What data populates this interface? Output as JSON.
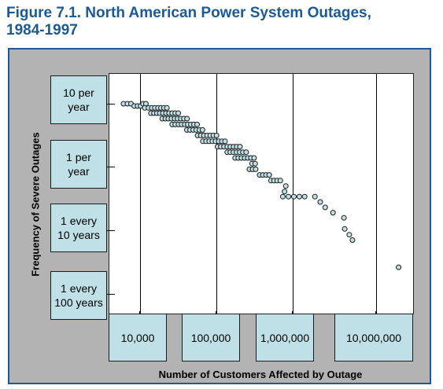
{
  "title_line1": "Figure 7.1. North American Power System Outages,",
  "title_line2": "1984-1997",
  "colors": {
    "title": "#1a5a96",
    "box_fill": "#bfe0e6",
    "frame": "#b3b3b3",
    "point_fill": "#bfe0e6"
  },
  "chart_data": {
    "type": "scatter",
    "xlabel": "Number of Customers Affected by Outage",
    "ylabel": "Frequency of Severe Outages",
    "xscale": "log",
    "yscale": "log",
    "x_ticks": [
      "10,000",
      "100,000",
      "1,000,000",
      "10,000,000"
    ],
    "y_ticks": [
      "10 per year",
      "1 per year",
      "1 every 10 years",
      "1 every 100 years"
    ],
    "xlim": [
      3400,
      38000000
    ],
    "ylim": [
      0.0033,
      25
    ],
    "grid_x": true,
    "grid_y": false,
    "points": [
      [
        6200,
        10
      ],
      [
        7000,
        10
      ],
      [
        7800,
        10
      ],
      [
        8600,
        9.2
      ],
      [
        9500,
        9.2
      ],
      [
        10400,
        9.2
      ],
      [
        11200,
        10
      ],
      [
        12200,
        10
      ],
      [
        11800,
        8.6
      ],
      [
        13200,
        8.6
      ],
      [
        14600,
        8.6
      ],
      [
        16000,
        8.6
      ],
      [
        17600,
        8.6
      ],
      [
        19200,
        8.6
      ],
      [
        21000,
        8.6
      ],
      [
        23000,
        8.6
      ],
      [
        14200,
        7.1
      ],
      [
        15600,
        7.1
      ],
      [
        17000,
        7.1
      ],
      [
        18600,
        7.1
      ],
      [
        20400,
        7.1
      ],
      [
        22400,
        7.1
      ],
      [
        24600,
        7.1
      ],
      [
        27000,
        7.1
      ],
      [
        29600,
        7.1
      ],
      [
        32400,
        7.1
      ],
      [
        20000,
        5.8
      ],
      [
        22000,
        5.8
      ],
      [
        24000,
        5.8
      ],
      [
        26400,
        5.8
      ],
      [
        29000,
        5.8
      ],
      [
        31800,
        5.8
      ],
      [
        35000,
        5.8
      ],
      [
        38400,
        5.8
      ],
      [
        42200,
        5.8
      ],
      [
        27000,
        4.7
      ],
      [
        29600,
        4.7
      ],
      [
        32600,
        4.7
      ],
      [
        35800,
        4.7
      ],
      [
        39400,
        4.7
      ],
      [
        43200,
        4.7
      ],
      [
        47400,
        4.7
      ],
      [
        52000,
        4.7
      ],
      [
        57200,
        4.7
      ],
      [
        42000,
        3.85
      ],
      [
        46200,
        3.85
      ],
      [
        50800,
        3.85
      ],
      [
        55800,
        3.85
      ],
      [
        61400,
        3.85
      ],
      [
        67400,
        3.85
      ],
      [
        58000,
        3.15
      ],
      [
        64000,
        3.15
      ],
      [
        70400,
        3.15
      ],
      [
        77400,
        3.15
      ],
      [
        85000,
        3.15
      ],
      [
        93500,
        3.15
      ],
      [
        103000,
        3.15
      ],
      [
        68000,
        2.55
      ],
      [
        75000,
        2.55
      ],
      [
        82500,
        2.55
      ],
      [
        90700,
        2.55
      ],
      [
        99800,
        2.55
      ],
      [
        110000,
        2.55
      ],
      [
        121000,
        2.55
      ],
      [
        133000,
        2.55
      ],
      [
        106000,
        2.1
      ],
      [
        117000,
        2.1
      ],
      [
        129000,
        2.1
      ],
      [
        142000,
        2.1
      ],
      [
        156000,
        2.1
      ],
      [
        172000,
        2.1
      ],
      [
        189000,
        2.1
      ],
      [
        208000,
        2.1
      ],
      [
        142000,
        1.71
      ],
      [
        156000,
        1.71
      ],
      [
        171000,
        1.71
      ],
      [
        188000,
        1.71
      ],
      [
        207000,
        1.71
      ],
      [
        228000,
        1.71
      ],
      [
        251000,
        1.71
      ],
      [
        180000,
        1.39
      ],
      [
        198000,
        1.39
      ],
      [
        218000,
        1.39
      ],
      [
        240000,
        1.39
      ],
      [
        264000,
        1.39
      ],
      [
        290000,
        1.39
      ],
      [
        319000,
        1.39
      ],
      [
        300000,
        1.13
      ],
      [
        330000,
        1.13
      ],
      [
        277000,
        0.92
      ],
      [
        305000,
        0.92
      ],
      [
        335000,
        0.92
      ],
      [
        378000,
        0.75
      ],
      [
        416000,
        0.75
      ],
      [
        458000,
        0.75
      ],
      [
        504000,
        0.75
      ],
      [
        530000,
        0.61
      ],
      [
        583000,
        0.61
      ],
      [
        641000,
        0.61
      ],
      [
        705000,
        0.61
      ],
      [
        830000,
        0.5
      ],
      [
        800000,
        0.41
      ],
      [
        760000,
        0.34
      ],
      [
        900000,
        0.34
      ],
      [
        1060000,
        0.34
      ],
      [
        1250000,
        0.34
      ],
      [
        1470000,
        0.34
      ],
      [
        2000000,
        0.34
      ],
      [
        2350000,
        0.28
      ],
      [
        2730000,
        0.23
      ],
      [
        3450000,
        0.19
      ],
      [
        4800000,
        0.157
      ],
      [
        4920000,
        0.105
      ],
      [
        5650000,
        0.085
      ],
      [
        6200000,
        0.07
      ],
      [
        25000000,
        0.026
      ]
    ]
  }
}
